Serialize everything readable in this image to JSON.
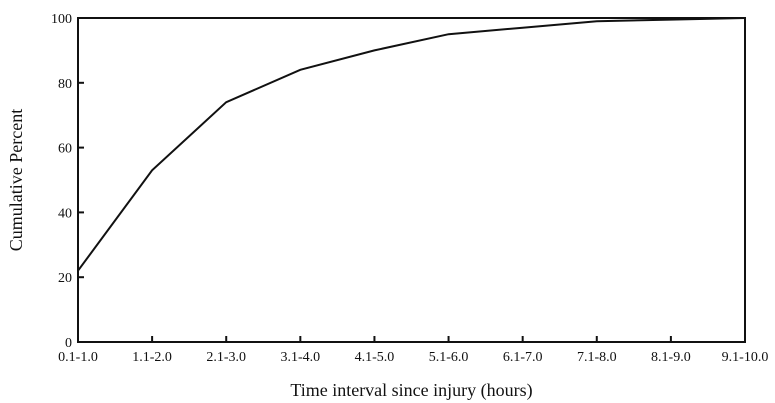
{
  "chart_data": {
    "type": "line",
    "title": "",
    "xlabel": "Time interval since injury (hours)",
    "ylabel": "Cumulative Percent",
    "categories": [
      "0.1-1.0",
      "1.1-2.0",
      "2.1-3.0",
      "3.1-4.0",
      "4.1-5.0",
      "5.1-6.0",
      "6.1-7.0",
      "7.1-8.0",
      "8.1-9.0",
      "9.1-10.0"
    ],
    "series": [
      {
        "values": [
          22,
          53,
          74,
          84,
          90,
          95,
          97,
          99,
          99.5,
          100
        ]
      }
    ],
    "ylim": [
      0,
      100
    ],
    "yticks": [
      "0",
      "20",
      "40",
      "60",
      "80",
      "100"
    ],
    "grid": false,
    "legend": "none",
    "line_color": "#111111"
  }
}
